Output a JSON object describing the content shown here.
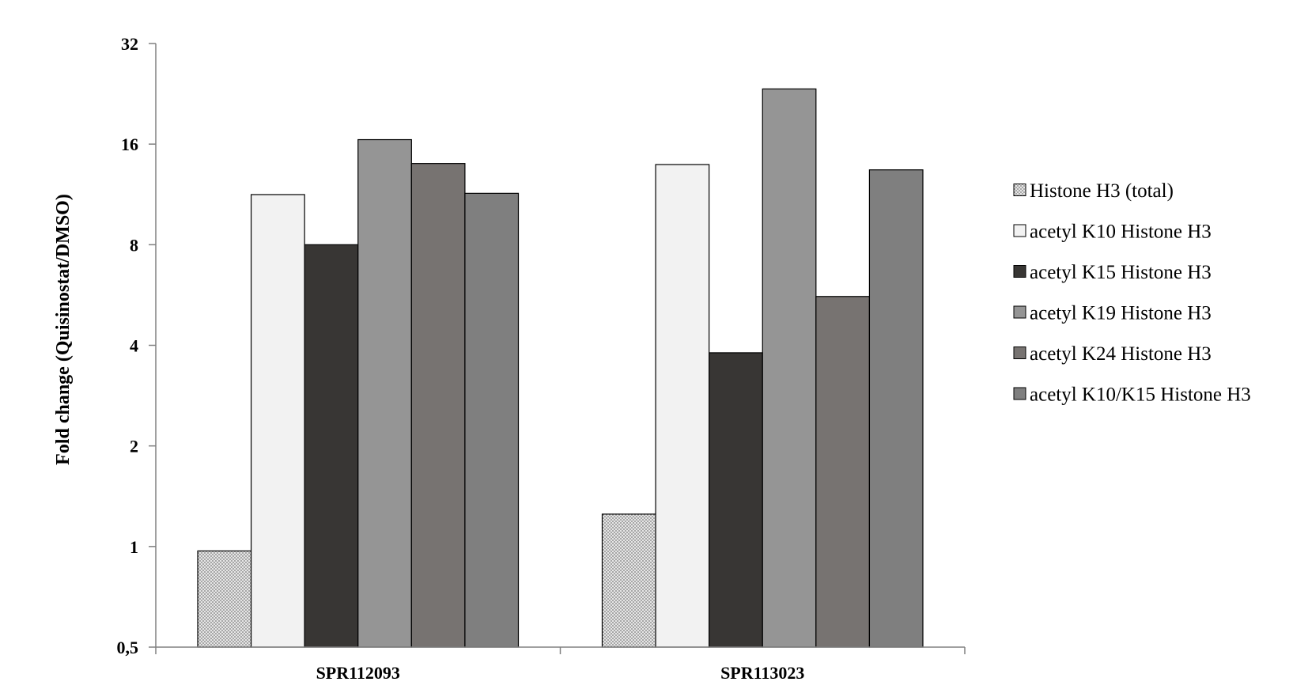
{
  "chart_data": {
    "type": "bar",
    "title": "",
    "xlabel": "",
    "ylabel": "Fold change (Quisinostat/DMSO)",
    "yscale": "log2",
    "ylim": [
      0.5,
      32
    ],
    "yticks": [
      0.5,
      1,
      2,
      4,
      8,
      16,
      32
    ],
    "ytick_labels": [
      "0,5",
      "1",
      "2",
      "4",
      "8",
      "16",
      "32"
    ],
    "grid": false,
    "legend_position": "right",
    "categories": [
      "SPR112093",
      "SPR113023"
    ],
    "series": [
      {
        "name": "Histone H3 (total)",
        "values": [
          0.97,
          1.25
        ],
        "color": "#d9d9d9",
        "pattern": "dotted"
      },
      {
        "name": "acetyl K10 Histone H3",
        "values": [
          11.3,
          13.9
        ],
        "color": "#f2f2f2"
      },
      {
        "name": "acetyl K15 Histone H3",
        "values": [
          8.0,
          3.8
        ],
        "color": "#383634"
      },
      {
        "name": "acetyl K19 Histone H3",
        "values": [
          16.5,
          23.4
        ],
        "color": "#959595"
      },
      {
        "name": "acetyl K24 Histone H3",
        "values": [
          14.0,
          5.6
        ],
        "color": "#777371"
      },
      {
        "name": "acetyl K10/K15 Histone H3",
        "values": [
          11.4,
          13.4
        ],
        "color": "#7f7f7f"
      }
    ]
  }
}
